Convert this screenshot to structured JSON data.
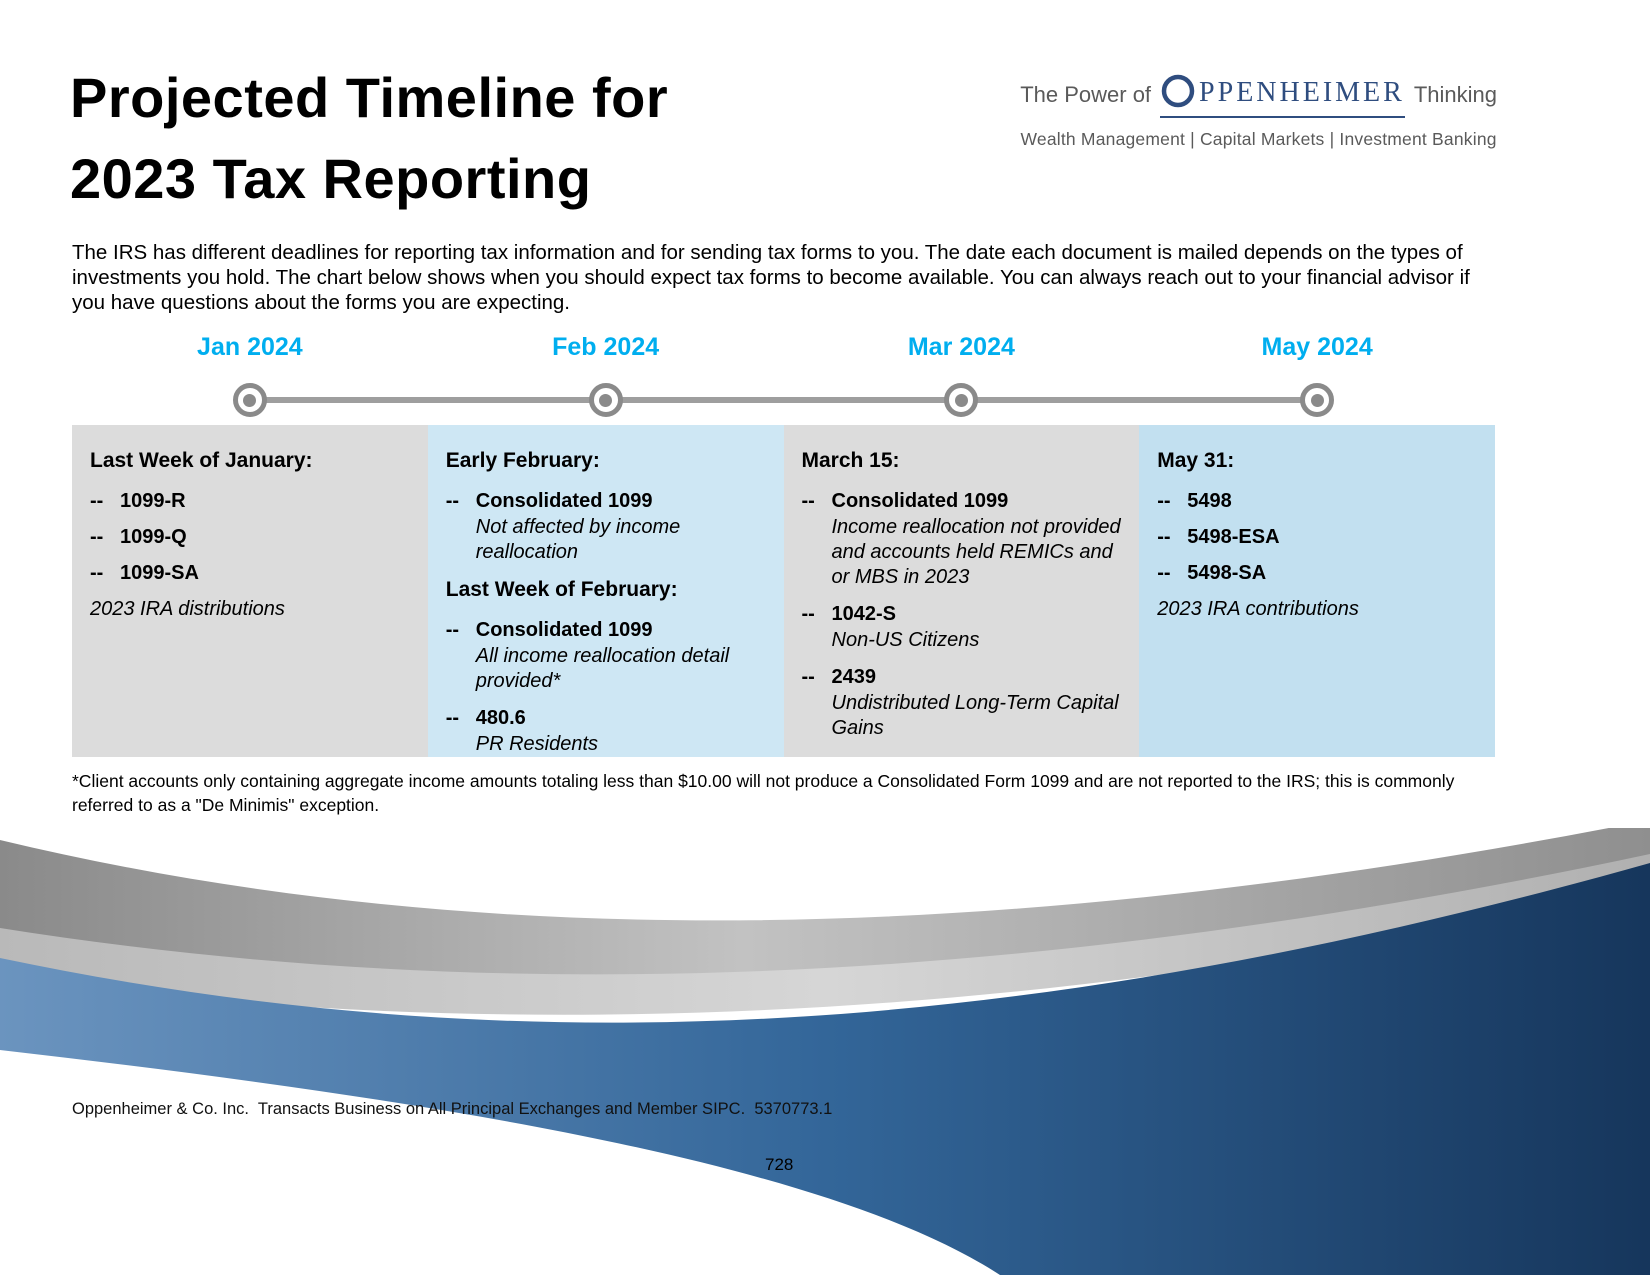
{
  "meta": {
    "bullet_glyph": "--"
  },
  "brand": {
    "power_prefix": "The Power of",
    "wordmark_rest": "PPENHEIMER",
    "thinking_suffix": "Thinking",
    "tagline": "Wealth Management | Capital Markets | Investment Banking"
  },
  "header": {
    "title_line1": "Projected Timeline for",
    "title_line2": "2023 Tax Reporting"
  },
  "intro": "The IRS has different deadlines for reporting tax information and for sending tax forms to you. The date each document is mailed depends on the types of investments you hold. The chart below shows when you should expect tax forms to become available. You can always reach out to your financial advisor if you have questions about the forms you are expecting.",
  "timeline": {
    "milestones": [
      {
        "label": "Jan 2024"
      },
      {
        "label": "Feb 2024"
      },
      {
        "label": "Mar 2024"
      },
      {
        "label": "May 2024"
      }
    ]
  },
  "columns": [
    {
      "bg": "#DCDCDC",
      "blocks": [
        {
          "type": "heading",
          "text": "Last Week of January:"
        },
        {
          "type": "form",
          "name": "1099-R"
        },
        {
          "type": "form",
          "name": "1099-Q"
        },
        {
          "type": "form",
          "name": "1099-SA"
        },
        {
          "type": "note",
          "text": "2023 IRA distributions"
        }
      ]
    },
    {
      "bg": "#CEE7F4",
      "blocks": [
        {
          "type": "heading",
          "text": "Early February:"
        },
        {
          "type": "form",
          "name": "Consolidated 1099",
          "desc": "Not affected by income reallocation"
        },
        {
          "type": "heading",
          "text": "Last Week of February:"
        },
        {
          "type": "form",
          "name": "Consolidated 1099",
          "desc": "All income reallocation detail provided*"
        },
        {
          "type": "form",
          "name": "480.6",
          "desc": "PR Residents"
        }
      ]
    },
    {
      "bg": "#DCDCDC",
      "blocks": [
        {
          "type": "heading",
          "text": "March 15:"
        },
        {
          "type": "form",
          "name": "Consolidated 1099",
          "desc": "Income reallocation not provided and accounts held REMICs and or MBS in 2023"
        },
        {
          "type": "form",
          "name": "1042-S",
          "desc": "Non-US Citizens"
        },
        {
          "type": "form",
          "name": "2439",
          "desc": "Undistributed Long-Term Capital Gains"
        }
      ]
    },
    {
      "bg": "#C2E0F0",
      "blocks": [
        {
          "type": "heading",
          "text": "May 31:"
        },
        {
          "type": "form",
          "name": "5498"
        },
        {
          "type": "form",
          "name": "5498-ESA"
        },
        {
          "type": "form",
          "name": "5498-SA"
        },
        {
          "type": "note",
          "text": "2023 IRA contributions"
        }
      ]
    }
  ],
  "footnote": "*Client accounts only containing aggregate income amounts totaling less than $10.00 will not produce a Consolidated Form 1099 and are not reported to the IRS; this is commonly referred to as a \"De Minimis\" exception.",
  "footer": {
    "disclaimer": "Oppenheimer & Co. Inc.  Transacts Business on All Principal Exchanges and Member SIPC.  5370773.1",
    "page_number": "728"
  },
  "colors": {
    "accent_cyan": "#00AEEF",
    "brand_navy": "#2F4D7F",
    "column_gray": "#DCDCDC",
    "column_blue_light": "#CEE7F4",
    "column_blue": "#C2E0F0",
    "timeline_gray": "#9E9E9E"
  }
}
